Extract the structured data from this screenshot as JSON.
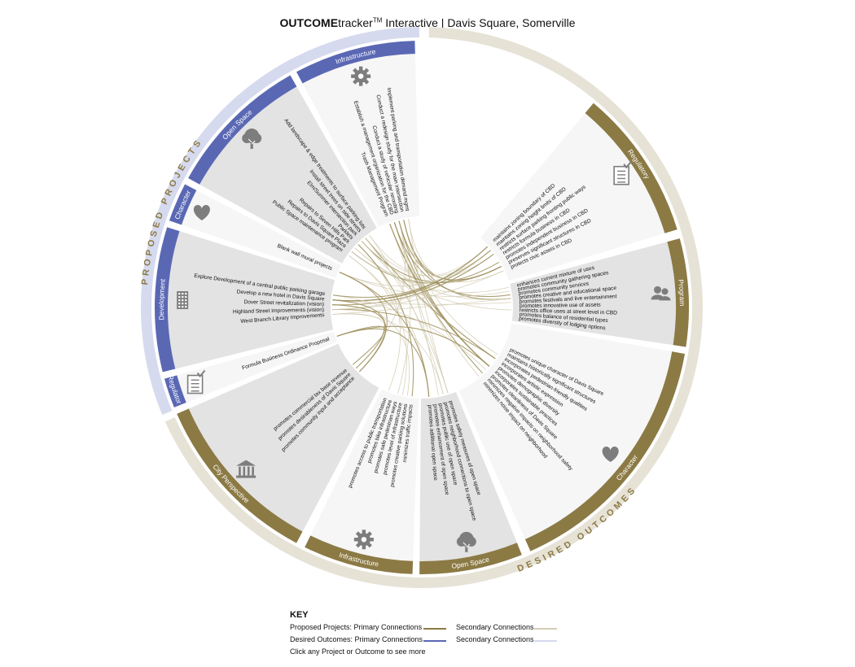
{
  "header": {
    "brand": "OUTCOME",
    "brand_rest": "tracker",
    "tm": "TM",
    "subtitle": " Interactive | Davis Square, Somerville"
  },
  "colors": {
    "gold": "#8c7a45",
    "gold_light": "#e6e2d6",
    "blue": "#5a68b4",
    "blue_light": "#d6daee",
    "panel_grey": "#e3e3e3",
    "panel_white": "#f6f6f6",
    "icon_grey": "#7d7d7d",
    "curve_gold": "#9e8f5c",
    "curve_light": "#d3ccb3"
  },
  "wheel": {
    "proposed_label": "PROPOSED PROJECTS",
    "desired_label": "DESIRED OUTCOMES",
    "groups": [
      {
        "side": "proposed",
        "label": "Infrastructure",
        "icon": "gear-icon",
        "items": [
          "Trash Management Program",
          "Establish a management organization for the CBD",
          "Conduct a study of vehicular rerouting",
          "Conduct a redesign study for the main intersection",
          "Implement parking and transportation demand mgmt"
        ]
      },
      {
        "side": "proposed",
        "label": "Open Space",
        "icon": "tree-icon",
        "items": [
          "Public Space maintenance program",
          "Repairs to Davis Square Plaza",
          "Repairs to Seven Hills Park",
          "Parklets",
          "Elm/Summer intersection park",
          "Install street trees on side streets",
          "Add landscape & edge treatments to surface parking lots"
        ]
      },
      {
        "side": "proposed",
        "label": "Character",
        "icon": "heart-icon",
        "items": [
          "Blank wall mural projects"
        ]
      },
      {
        "side": "proposed",
        "label": "Development",
        "icon": "building-icon",
        "items": [
          "West Branch Library Improvements",
          "Highland Street Improvements (vision)",
          "Dover Street revitalization (vision)",
          "Develop a new hotel in Davis Square",
          "Explore Development of a central public parking garage"
        ]
      },
      {
        "side": "proposed",
        "label": "Regulatory",
        "icon": "checklist-icon",
        "items": [
          "Formula Business Ordinance Proposal"
        ]
      },
      {
        "side": "desired",
        "label": "City Perspective",
        "icon": "civic-building-icon",
        "items": [
          "promotes community input and acceptance",
          "promotes desirableness of Davis Square",
          "promotes commercial tax base revenue"
        ]
      },
      {
        "side": "desired",
        "label": "Infrastructure",
        "icon": "gear-icon",
        "items": [
          "minimizes traffic impacts",
          "promotes creative parking solutions",
          "promotes level of infrastructure",
          "promotes safe pedestrian ways",
          "promotes bike infrastructure",
          "promotes access to public transportation"
        ]
      },
      {
        "side": "desired",
        "label": "Open Space",
        "icon": "tree-icon",
        "items": [
          "promotes safety measures of open space",
          "promotes neighborhood connections to open space",
          "promotes public use of open space",
          "promotes enhancement of open space",
          "promotes additional open space"
        ]
      },
      {
        "side": "desired",
        "label": "Character",
        "icon": "heart-icon",
        "items": [
          "promotes unique character of Davis Square",
          "maintains historically significant structures",
          "incorporates pedestrian-friendly qualities",
          "incorporates artistic expression",
          "promotes demographic diversity",
          "incorporates sustainable practices",
          "promotes cleanliness of Davis Square",
          "minimizes negative impacts on neighborhood safety",
          "minimizes noise impact on neighborhood"
        ]
      },
      {
        "side": "desired",
        "label": "Program",
        "icon": "people-icon",
        "items": [
          "enhances current mixture of uses",
          "promotes community gathering spaces",
          "promotes community services",
          "promotes creative and educational space",
          "promotes festivals and live entertainment",
          "promotes innovative use of assets",
          "restricts office uses at street level in CBD",
          "promotes balance of residential types",
          "promotes diversity of lodging options"
        ]
      },
      {
        "side": "desired",
        "label": "Regulatory",
        "icon": "checklist-icon",
        "items": [
          "maintains zoning boundary of CBD",
          "maintains zoning height limits of CBD",
          "restricts surface parking fronting public ways",
          "restricts formula business in CBD",
          "promotes independent business in CBD",
          "preserves significant structures in CBD",
          "protects civic assets in CBD"
        ]
      }
    ]
  },
  "key": {
    "title": "KEY",
    "proposed_primary": "Proposed Projects:  Primary Connections",
    "desired_primary": "Desired Outcomes:  Primary Connections",
    "secondary": "Secondary Connections",
    "hint": "Click any Project or Outcome to see more"
  }
}
